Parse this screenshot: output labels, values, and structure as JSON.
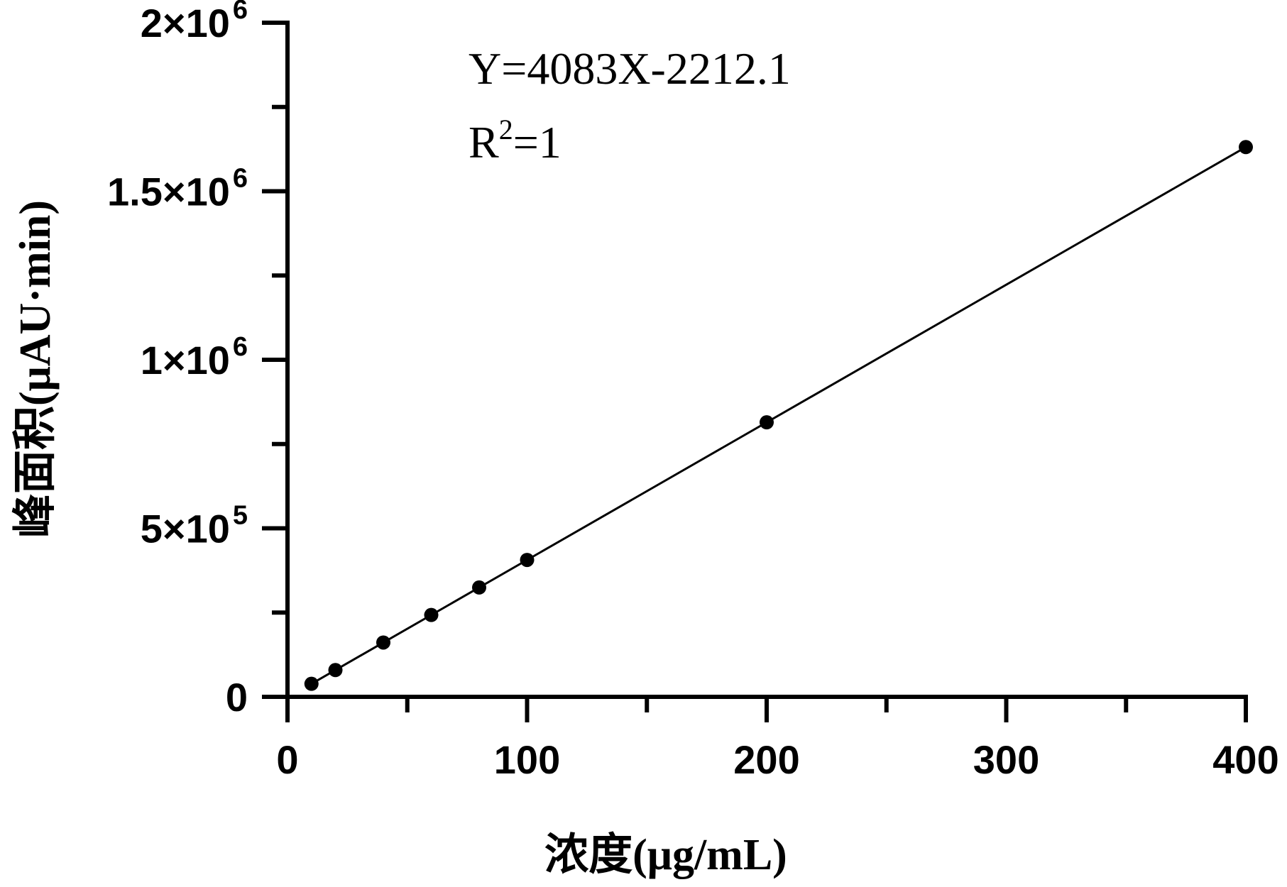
{
  "chart_data": {
    "type": "scatter",
    "xlabel": "浓度(μg/mL)",
    "ylabel": "峰面积(μAU·min)",
    "xlim": [
      0,
      400
    ],
    "ylim": [
      0,
      2000000
    ],
    "x_ticks": [
      {
        "value": 0,
        "label": "0"
      },
      {
        "value": 100,
        "label": "100"
      },
      {
        "value": 200,
        "label": "200"
      },
      {
        "value": 300,
        "label": "300"
      },
      {
        "value": 400,
        "label": "400"
      }
    ],
    "x_minor_ticks": [
      50,
      150,
      250,
      350
    ],
    "y_ticks": [
      {
        "value": 0,
        "base": "0",
        "exp": ""
      },
      {
        "value": 500000,
        "base": "5×10",
        "exp": "5"
      },
      {
        "value": 1000000,
        "base": "1×10",
        "exp": "6"
      },
      {
        "value": 1500000,
        "base": "1.5×10",
        "exp": "6"
      },
      {
        "value": 2000000,
        "base": "2×10",
        "exp": "6"
      }
    ],
    "y_minor_ticks": [
      250000,
      750000,
      1250000,
      1750000
    ],
    "points": [
      {
        "x": 10,
        "y": 38600
      },
      {
        "x": 20,
        "y": 79400
      },
      {
        "x": 40,
        "y": 161100
      },
      {
        "x": 60,
        "y": 242800
      },
      {
        "x": 80,
        "y": 324400
      },
      {
        "x": 100,
        "y": 406100
      },
      {
        "x": 200,
        "y": 814400
      },
      {
        "x": 400,
        "y": 1631000
      }
    ],
    "fit": {
      "slope": 4083,
      "intercept": -2212.1,
      "x_range": [
        10,
        400
      ]
    },
    "annotation": {
      "equation": "Y=4083X-2212.1",
      "r2_prefix": "R",
      "r2_sup": "2",
      "r2_suffix": "=1"
    },
    "grid": false,
    "legend": "none"
  }
}
